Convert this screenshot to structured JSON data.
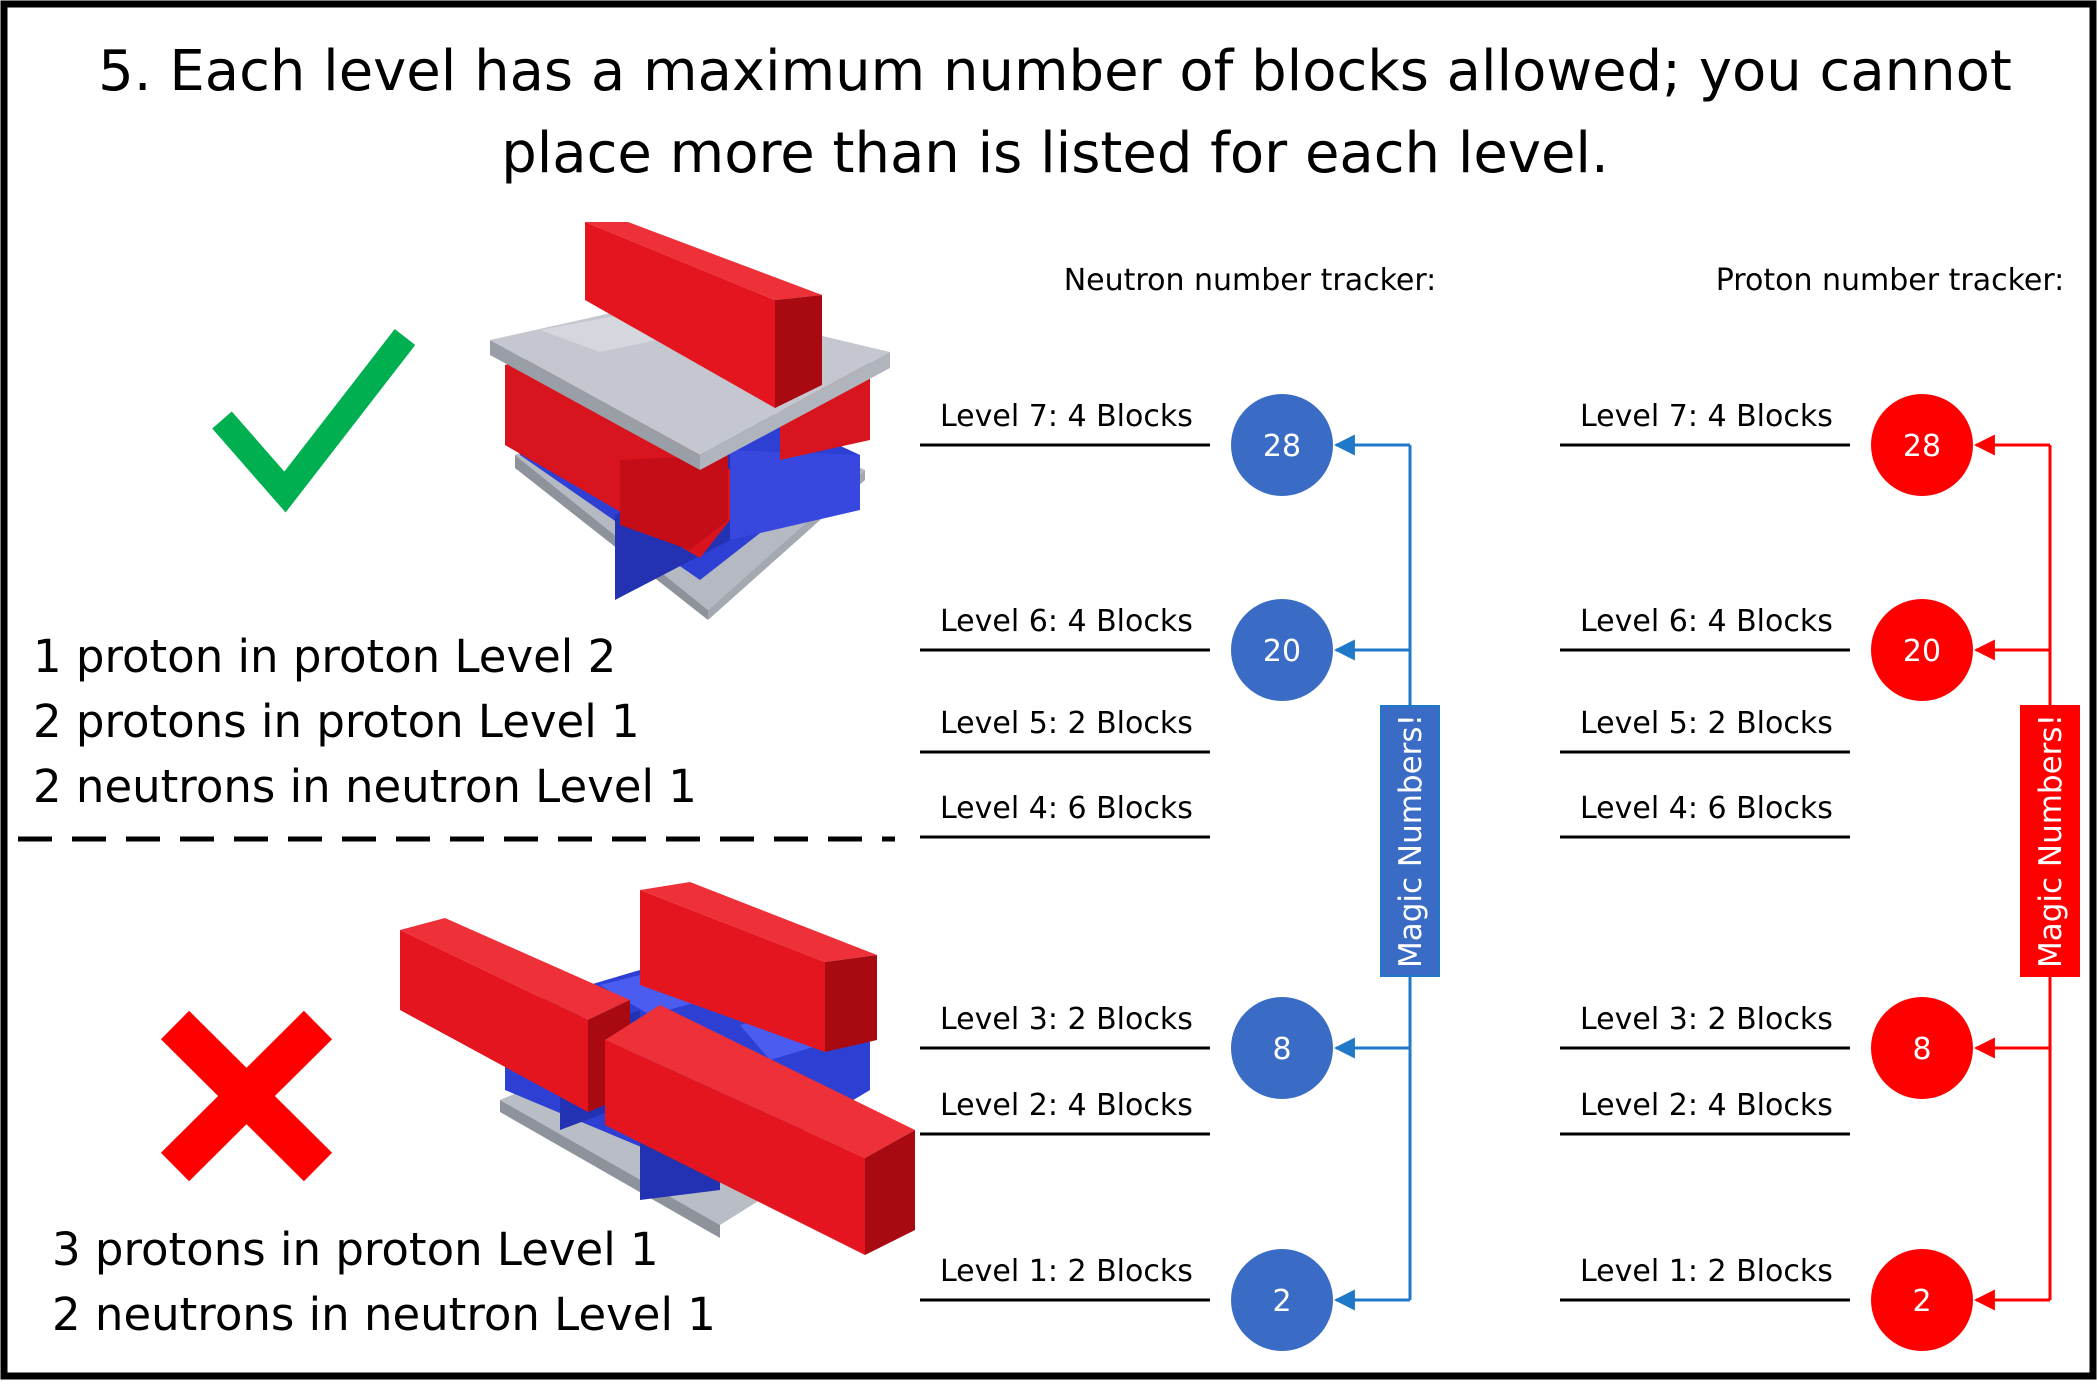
{
  "title": {
    "line1": "5. Each level has a maximum number of blocks allowed; you cannot",
    "line2": "place more than is listed for each level."
  },
  "colors": {
    "neutron_blue": "#3a6cc6",
    "proton_red": "#ff0000",
    "check_green": "#00b050",
    "cross_red": "#ff0000",
    "neutron_arrow": "#1f78c8",
    "proton_arrow": "#ff0000"
  },
  "example_correct": {
    "icon": "check-mark-icon",
    "lines": [
      "1 proton in proton Level 2",
      "2 protons in proton Level 1",
      "2 neutrons in neutron Level 1"
    ]
  },
  "example_incorrect": {
    "icon": "cross-mark-icon",
    "lines": [
      "3 protons in proton Level 1",
      "2 neutrons in neutron Level 1"
    ]
  },
  "neutron_tracker": {
    "heading": "Neutron number tracker:",
    "magic_label": "Magic Numbers!",
    "levels": [
      "Level 7: 4 Blocks",
      "Level 6: 4 Blocks",
      "Level 5: 2 Blocks",
      "Level 4: 6 Blocks",
      "Level 3: 2 Blocks",
      "Level 2: 4 Blocks",
      "Level 1: 2 Blocks"
    ],
    "magic_numbers": [
      "28",
      "20",
      "8",
      "2"
    ]
  },
  "proton_tracker": {
    "heading": "Proton number tracker:",
    "magic_label": "Magic Numbers!",
    "levels": [
      "Level 7: 4 Blocks",
      "Level 6: 4 Blocks",
      "Level 5: 2 Blocks",
      "Level 4: 6 Blocks",
      "Level 3: 2 Blocks",
      "Level 2: 4 Blocks",
      "Level 1: 2 Blocks"
    ],
    "magic_numbers": [
      "28",
      "20",
      "8",
      "2"
    ]
  }
}
